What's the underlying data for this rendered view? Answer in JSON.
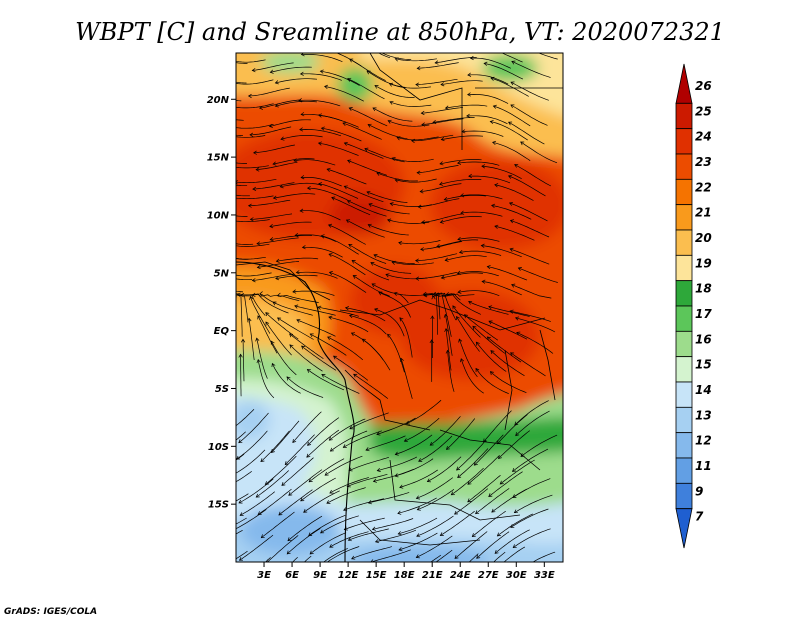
{
  "title": "WBPT [C] and Sreamline at 850hPa, VT: 2020072321",
  "credit": "GrADS: IGES/COLA",
  "map": {
    "lon_min": 0,
    "lon_max": 35,
    "lat_min": -20,
    "lat_max": 24,
    "lat_ticks": [
      {
        "value": 20,
        "label": "20N"
      },
      {
        "value": 15,
        "label": "15N"
      },
      {
        "value": 10,
        "label": "10N"
      },
      {
        "value": 5,
        "label": "5N"
      },
      {
        "value": 0,
        "label": "EQ"
      },
      {
        "value": -5,
        "label": "5S"
      },
      {
        "value": -10,
        "label": "10S"
      },
      {
        "value": -15,
        "label": "15S"
      }
    ],
    "lon_ticks": [
      {
        "value": 3,
        "label": "3E"
      },
      {
        "value": 6,
        "label": "6E"
      },
      {
        "value": 9,
        "label": "9E"
      },
      {
        "value": 12,
        "label": "12E"
      },
      {
        "value": 15,
        "label": "15E"
      },
      {
        "value": 18,
        "label": "18E"
      },
      {
        "value": 21,
        "label": "21E"
      },
      {
        "value": 24,
        "label": "24E"
      },
      {
        "value": 27,
        "label": "27E"
      },
      {
        "value": 30,
        "label": "30E"
      },
      {
        "value": 33,
        "label": "33E"
      }
    ]
  },
  "colorbar": {
    "levels": [
      "26",
      "25",
      "24",
      "23",
      "22",
      "21",
      "20",
      "19",
      "18",
      "17",
      "16",
      "15",
      "14",
      "13",
      "12",
      "11",
      "9",
      "7"
    ],
    "colors": [
      "#b00000",
      "#cc1a00",
      "#e03000",
      "#ec4c00",
      "#f57300",
      "#f99a1c",
      "#fbbe4f",
      "#fde49a",
      "#2ea83a",
      "#5cc65a",
      "#9ddc8c",
      "#d4f3cf",
      "#c7e4f8",
      "#a6d0f2",
      "#85b9ec",
      "#629fe4",
      "#3f80dc",
      "#1f5fd0"
    ]
  }
}
